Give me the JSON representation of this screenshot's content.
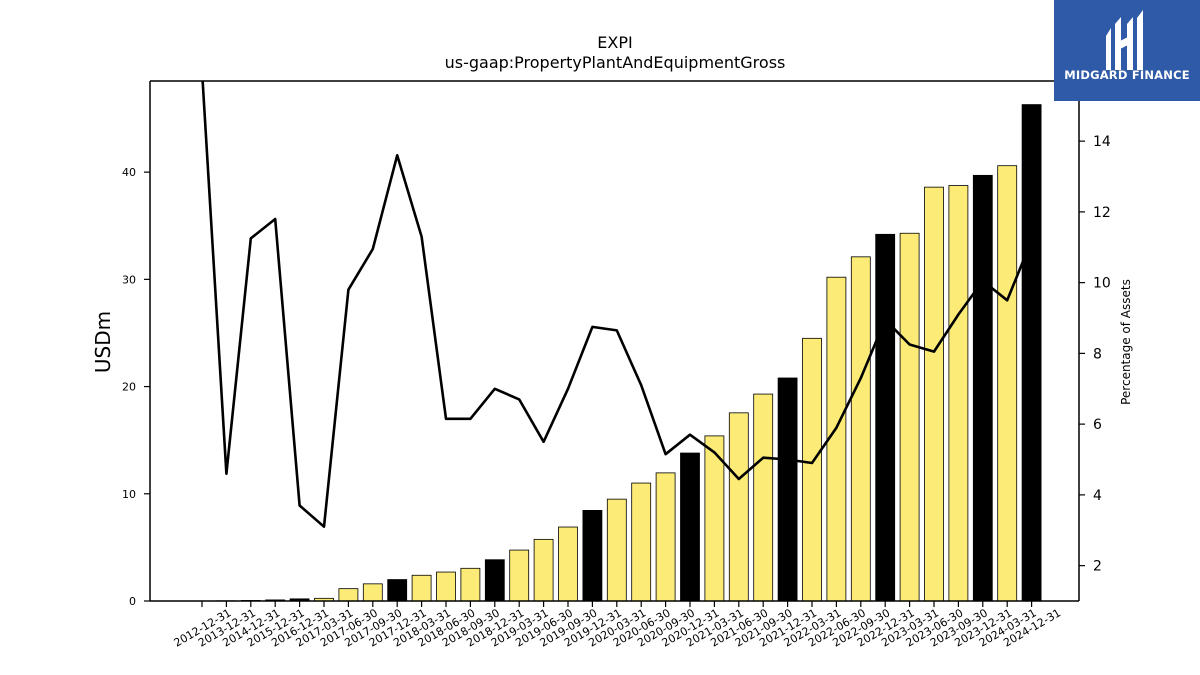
{
  "logo": {
    "text": "MIDGARD FINANCE"
  },
  "chart_data": {
    "type": "bar",
    "title": "EXPI",
    "subtitle": "us-gaap:PropertyPlantAndEquipmentGross",
    "ylabel": "USDm",
    "y2label": "Percentage of Assets",
    "ylim": [
      0,
      48.5
    ],
    "y2lim": [
      1.0,
      15.7
    ],
    "yticks": [
      0,
      10,
      20,
      30,
      40
    ],
    "y2ticks": [
      2,
      4,
      6,
      8,
      10,
      12,
      14
    ],
    "categories": [
      "2012-12-31",
      "2013-12-31",
      "2014-12-31",
      "2015-12-31",
      "2016-12-31",
      "2017-03-31",
      "2017-06-30",
      "2017-09-30",
      "2017-12-31",
      "2018-03-31",
      "2018-06-30",
      "2018-09-30",
      "2018-12-31",
      "2019-03-31",
      "2019-06-30",
      "2019-09-30",
      "2019-12-31",
      "2020-03-31",
      "2020-06-30",
      "2020-09-30",
      "2020-12-31",
      "2021-03-31",
      "2021-06-30",
      "2021-09-30",
      "2021-12-31",
      "2022-03-31",
      "2022-06-30",
      "2022-09-30",
      "2022-12-31",
      "2023-03-31",
      "2023-06-30",
      "2023-09-30",
      "2023-12-31",
      "2024-03-31",
      "2024-12-31"
    ],
    "series": [
      {
        "type": "bar",
        "values": [
          0.0,
          0.02,
          0.05,
          0.1,
          0.2,
          0.25,
          1.15,
          1.6,
          2.0,
          2.4,
          2.7,
          3.05,
          3.85,
          4.75,
          5.75,
          6.9,
          8.45,
          9.5,
          11.0,
          11.95,
          13.8,
          15.4,
          17.55,
          19.3,
          20.8,
          24.5,
          30.2,
          32.1,
          34.2,
          34.3,
          38.6,
          38.75,
          39.7,
          40.6,
          46.3
        ],
        "year_end_color": "#000000",
        "quarter_color": "#fcec77"
      },
      {
        "type": "line",
        "axis": "right",
        "color": "#000000",
        "values": [
          16.0,
          4.6,
          11.25,
          11.8,
          3.7,
          3.1,
          9.8,
          10.95,
          13.6,
          11.3,
          6.15,
          6.15,
          7.0,
          6.7,
          5.5,
          7.0,
          8.75,
          8.65,
          7.1,
          5.15,
          5.7,
          5.2,
          4.45,
          5.05,
          5.0,
          4.9,
          5.9,
          7.3,
          8.95,
          8.25,
          8.05,
          9.1,
          10.05,
          9.5,
          11.2
        ]
      }
    ],
    "grid": false,
    "legend": "none"
  }
}
